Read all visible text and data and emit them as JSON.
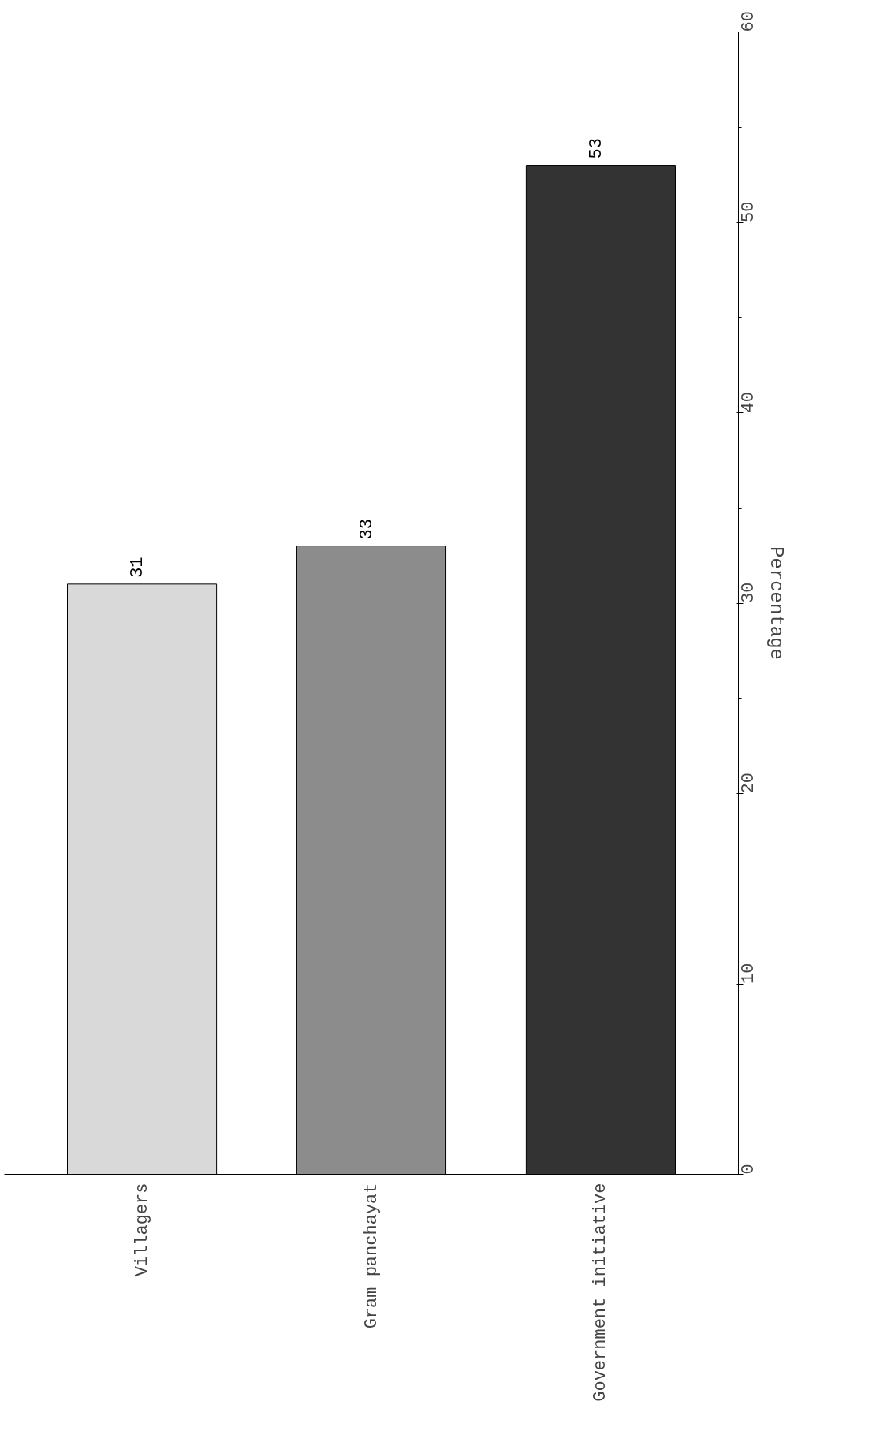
{
  "chart_data": {
    "type": "bar",
    "ylabel": "Percentage",
    "categories": [
      "Villagers",
      "Gram panchayat",
      "Government initiative"
    ],
    "values": [
      31,
      33,
      53
    ],
    "colors": [
      "#d9d9d9",
      "#8c8c8c",
      "#333333"
    ],
    "ylim": [
      0,
      60
    ],
    "yticks": [
      0,
      10,
      20,
      30,
      40,
      50,
      60
    ],
    "data_labels": true,
    "grid": false
  }
}
